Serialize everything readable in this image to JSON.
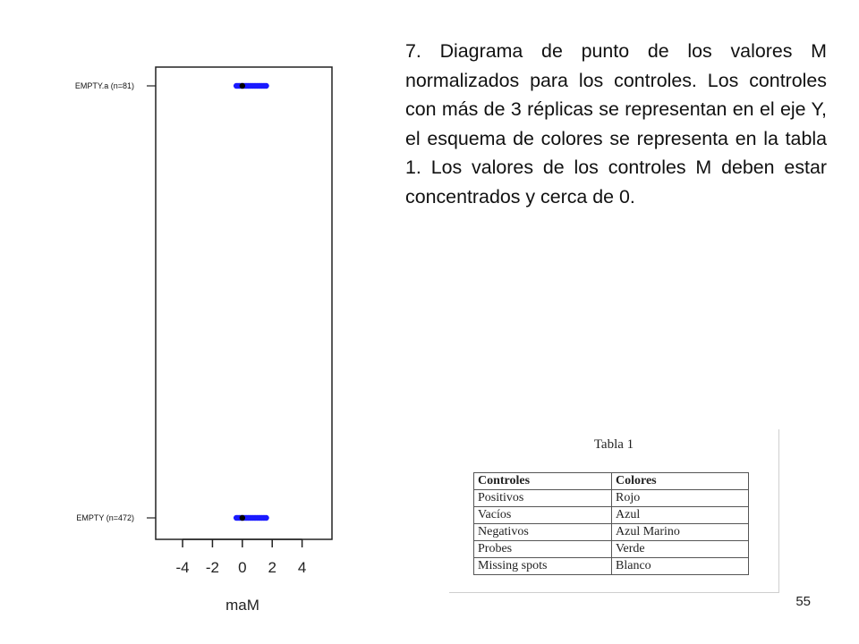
{
  "slide": {
    "caption": "7. Diagrama de punto de los valores M normalizados para los controles. Los controles con más de 3 réplicas se representan en el eje Y, el esquema de colores se representa en la tabla 1. Los valores de los controles M deben estar concentrados y cerca de 0.",
    "page_number": "55"
  },
  "chart_data": {
    "type": "scatter",
    "title": "",
    "xlabel": "maM",
    "ylabel": "",
    "xlim": [
      -5.8,
      6
    ],
    "x_ticks": [
      -4,
      -2,
      0,
      2,
      4
    ],
    "x_tick_labels": [
      "-4",
      "-2",
      "0",
      "2",
      "4"
    ],
    "grid": false,
    "categories": [
      "EMPTY.a (n=81)",
      "EMPTY (n=472)"
    ],
    "series": [
      {
        "category": "EMPTY.a (n=81)",
        "color": "#1a1aff",
        "median": 0,
        "x": [
          -0.4,
          -0.3,
          -0.2,
          -0.1,
          0.0,
          0.1,
          0.2,
          0.3,
          0.4,
          0.5,
          0.6,
          0.7,
          0.8,
          0.9,
          1.0,
          1.1,
          1.2,
          1.3,
          1.4,
          1.5,
          1.6
        ]
      },
      {
        "category": "EMPTY (n=472)",
        "color": "#1a1aff",
        "median": 0,
        "x": [
          -0.4,
          -0.3,
          -0.2,
          -0.1,
          0.0,
          0.1,
          0.2,
          0.3,
          0.4,
          0.5,
          0.6,
          0.7,
          0.8,
          0.9,
          1.0,
          1.1,
          1.2,
          1.3,
          1.4,
          1.5,
          1.6
        ]
      }
    ],
    "median_color": "#000000"
  },
  "table": {
    "title": "Tabla 1",
    "headers": [
      "Controles",
      "Colores"
    ],
    "rows": [
      [
        "Positivos",
        "Rojo"
      ],
      [
        "Vacíos",
        "Azul"
      ],
      [
        "Negativos",
        "Azul Marino"
      ],
      [
        "Probes",
        "Verde"
      ],
      [
        "Missing spots",
        "Blanco"
      ]
    ]
  }
}
